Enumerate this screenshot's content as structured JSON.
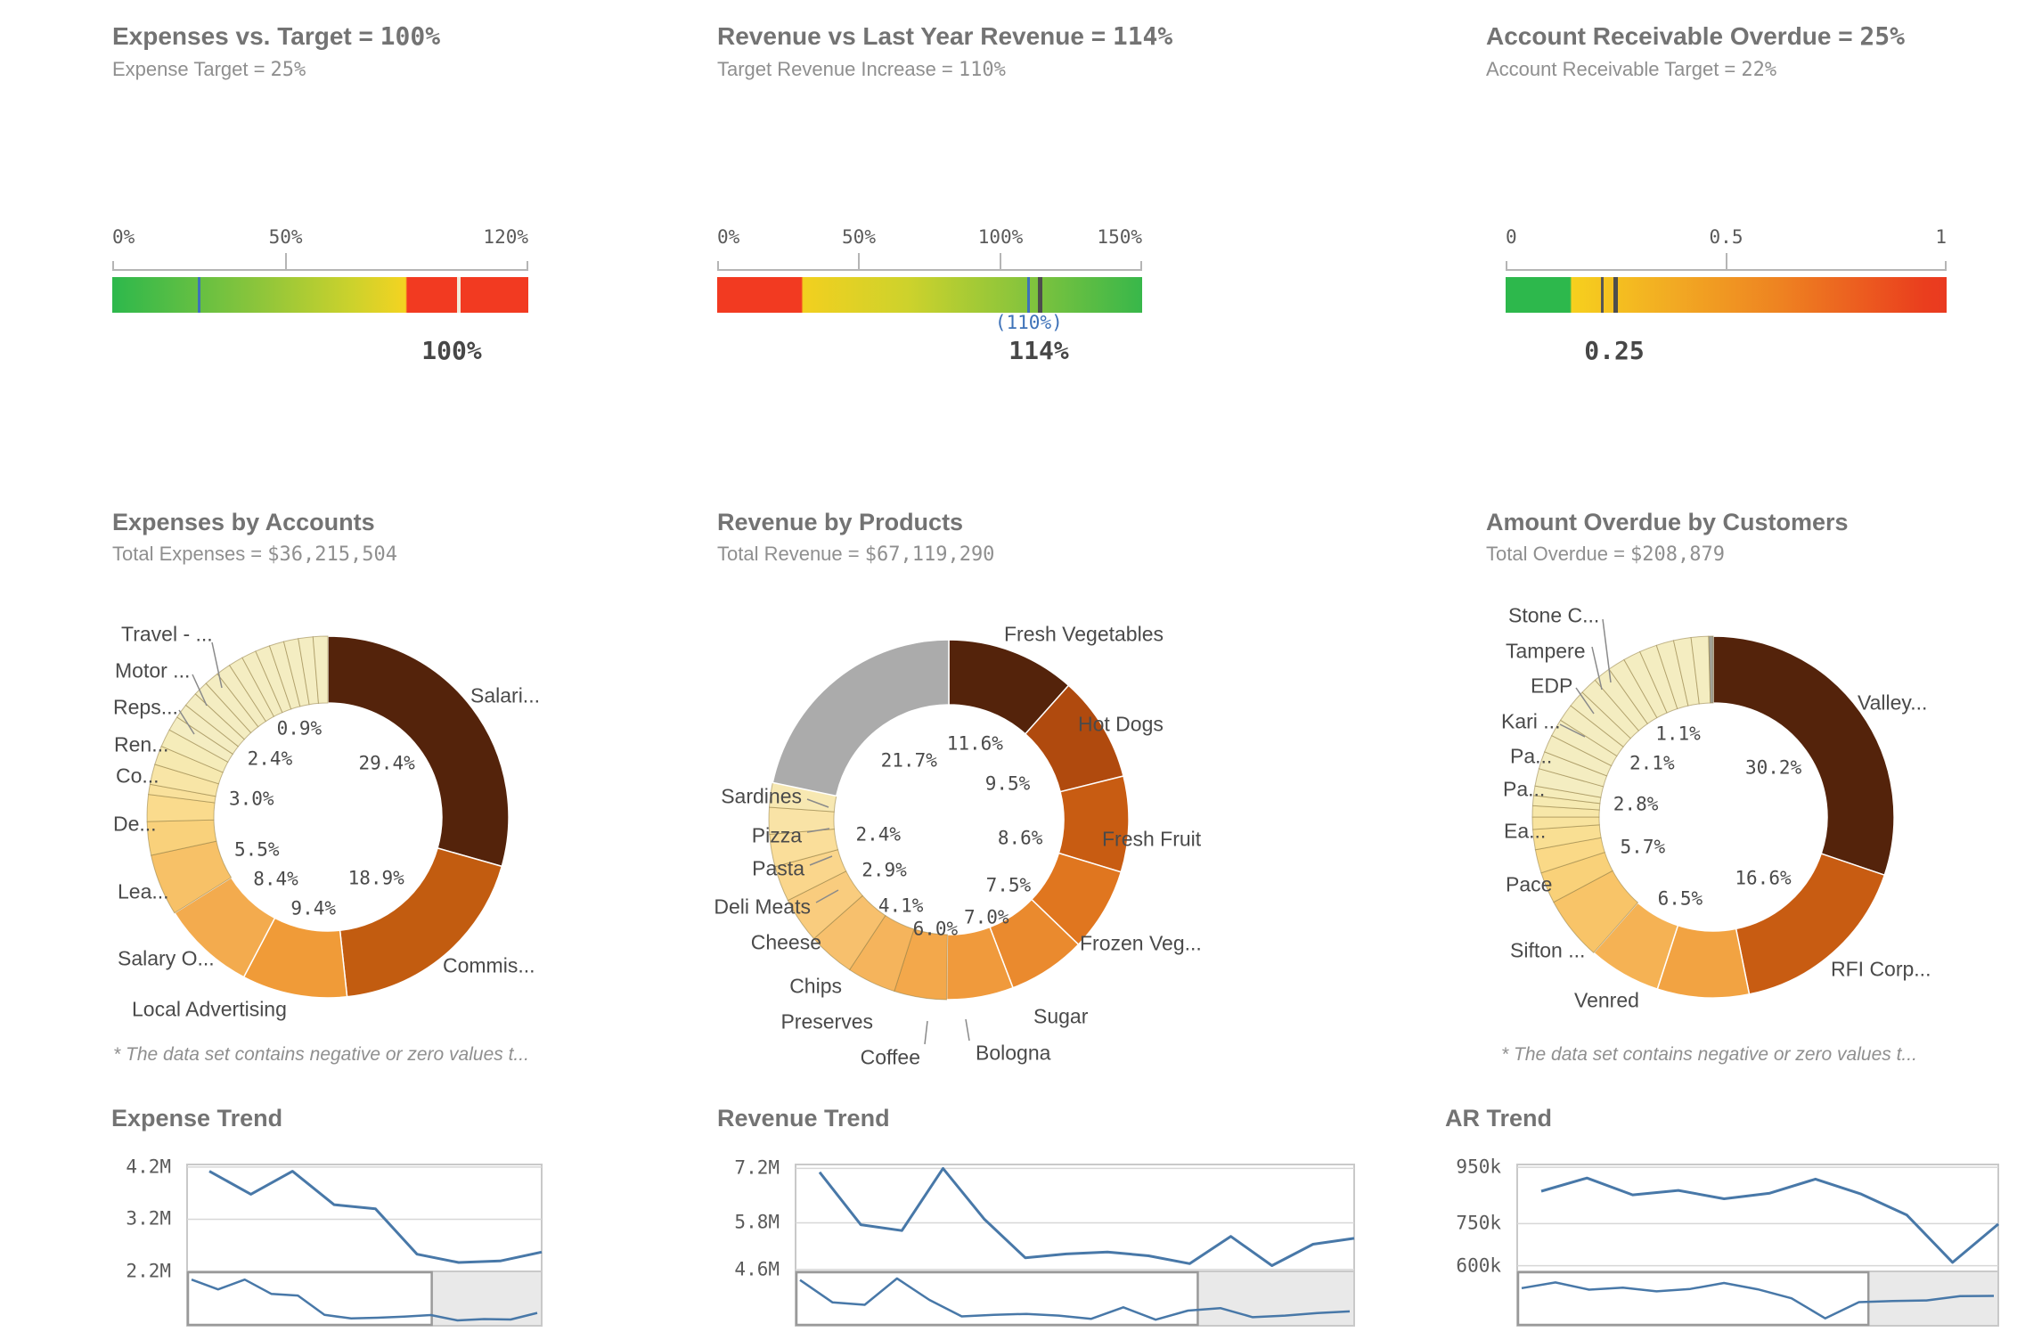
{
  "chart_data": [
    {
      "type": "bullet",
      "title": "Expenses vs. Target = ",
      "title_value": "100%",
      "subtitle": "Expense Target = ",
      "subtitle_value": "25%",
      "min": 0,
      "max": 120,
      "ticks": [
        {
          "label": "0%",
          "v": 0
        },
        {
          "label": "50%",
          "v": 50
        },
        {
          "label": "120%",
          "v": 120
        }
      ],
      "value": 100,
      "value_label": "100%",
      "target": 25,
      "annotation": null,
      "annotation_v": null,
      "bar_gradient": [
        [
          "#2db84c",
          0
        ],
        [
          "#8cc53b",
          35
        ],
        [
          "#cdd22c",
          58
        ],
        [
          "#f4d321",
          70.5
        ],
        [
          "#f23a21",
          70.9
        ],
        [
          "#f23a21",
          100
        ]
      ],
      "markers": [
        {
          "v": 25,
          "color": "#3e72b8",
          "w": 3
        },
        {
          "v": 100,
          "color": "#f2ead9",
          "w": 4
        }
      ]
    },
    {
      "type": "bullet",
      "title": "Revenue vs Last Year Revenue = ",
      "title_value": "114%",
      "subtitle": "Target Revenue Increase = ",
      "subtitle_value": "110%",
      "min": 0,
      "max": 150,
      "ticks": [
        {
          "label": "0%",
          "v": 0
        },
        {
          "label": "50%",
          "v": 50
        },
        {
          "label": "100%",
          "v": 100
        },
        {
          "label": "150%",
          "v": 150
        }
      ],
      "value": 114,
      "value_label": "114%",
      "target": 110,
      "annotation": "(110%)",
      "annotation_v": 110,
      "bar_gradient": [
        [
          "#f23a21",
          0
        ],
        [
          "#f23a21",
          19.8
        ],
        [
          "#f2d01f",
          20.2
        ],
        [
          "#cdd22c",
          45
        ],
        [
          "#8cc53b",
          70
        ],
        [
          "#38b74a",
          100
        ]
      ],
      "markers": [
        {
          "v": 110,
          "color": "#3e72b8",
          "w": 3
        },
        {
          "v": 114,
          "color": "#4d4d4d",
          "w": 5
        }
      ]
    },
    {
      "type": "bullet",
      "title": "Account Receivable Overdue = ",
      "title_value": "25%",
      "subtitle": "Account Receivable Target = ",
      "subtitle_value": "22%",
      "min": 0,
      "max": 1,
      "ticks": [
        {
          "label": "0",
          "v": 0
        },
        {
          "label": "0.5",
          "v": 0.5
        },
        {
          "label": "1",
          "v": 1
        }
      ],
      "value": 0.25,
      "value_label": "0.25",
      "target": 0.22,
      "annotation": null,
      "annotation_v": null,
      "bar_gradient": [
        [
          "#2db84c",
          0
        ],
        [
          "#2db84c",
          14.6
        ],
        [
          "#f6d01e",
          15.0
        ],
        [
          "#f2aa23",
          38
        ],
        [
          "#ee8321",
          62
        ],
        [
          "#ea3e1e",
          95
        ],
        [
          "#e93a20",
          100
        ]
      ],
      "markers": [
        {
          "v": 0.22,
          "color": "#565656",
          "w": 3
        },
        {
          "v": 0.25,
          "color": "#4d4d4d",
          "w": 5
        }
      ]
    },
    {
      "type": "donut",
      "title": "Expenses by Accounts",
      "subtitle": "Total Expenses = ",
      "subtitle_value": "$36,215,504",
      "footnote": "* The data set contains negative or zero values t...",
      "segments": [
        {
          "label": "Salari...",
          "pct": 29.4,
          "pct_label": "29.4%",
          "color": "#54230b"
        },
        {
          "label": "Commis...",
          "pct": 18.9,
          "pct_label": "18.9%",
          "color": "#c25c10"
        },
        {
          "label": "Local Advertising",
          "pct": 9.4,
          "pct_label": "9.4%",
          "color": "#f09b38"
        },
        {
          "label": "Salary O...",
          "pct": 8.4,
          "pct_label": "8.4%",
          "color": "#f3ab4e"
        },
        {
          "label": "Lea...",
          "pct": 5.5,
          "pct_label": "5.5%",
          "color": "#f7c167"
        },
        {
          "label": "De...",
          "pct": 3.0,
          "pct_label": "3.0%",
          "color": "#f9d17b"
        },
        {
          "label": "Co...",
          "pct": 2.4,
          "pct_label": "2.4%",
          "color": "#fadb8d"
        },
        {
          "label": "Ren...",
          "pct": 0.9,
          "pct_label": "0.9%",
          "color": "#f9e19c"
        },
        {
          "label": "Reps...",
          "pct": 1.8,
          "pct_label": null,
          "color": "#f8e5a6"
        },
        {
          "label": "Motor ...",
          "pct": 1.7,
          "pct_label": null,
          "color": "#f6e9b0"
        },
        {
          "label": "Travel - ...",
          "pct": 1.6,
          "pct_label": null,
          "color": "#f5ecba"
        },
        {
          "label": "",
          "pct": 17.0,
          "pct_label": null,
          "color": "#f4edc2",
          "filler_count": 13
        }
      ]
    },
    {
      "type": "donut",
      "title": "Revenue by Products",
      "subtitle": "Total Revenue = ",
      "subtitle_value": "$67,119,290",
      "footnote": null,
      "segments": [
        {
          "label": "Fresh Vegetables",
          "pct": 11.6,
          "pct_label": "11.6%",
          "color": "#54230b"
        },
        {
          "label": "Hot Dogs",
          "pct": 9.5,
          "pct_label": "9.5%",
          "color": "#b04a0e"
        },
        {
          "label": "Fresh Fruit",
          "pct": 8.6,
          "pct_label": "8.6%",
          "color": "#c85c12"
        },
        {
          "label": "Frozen Veg...",
          "pct": 7.5,
          "pct_label": "7.5%",
          "color": "#e0761f"
        },
        {
          "label": "Sugar",
          "pct": 7.0,
          "pct_label": "7.0%",
          "color": "#ea8a2e"
        },
        {
          "label": "Bologna",
          "pct": 6.0,
          "pct_label": "6.0%",
          "color": "#f09a3c"
        },
        {
          "label": "Coffee",
          "pct": 4.7,
          "pct_label": null,
          "color": "#f3a84b"
        },
        {
          "label": "Preserves",
          "pct": 4.4,
          "pct_label": null,
          "color": "#f5b45c"
        },
        {
          "label": "Chips",
          "pct": 4.2,
          "pct_label": null,
          "color": "#f7c06d"
        },
        {
          "label": "Cheese",
          "pct": 4.1,
          "pct_label": "4.1%",
          "color": "#f9cc7e"
        },
        {
          "label": "Deli Meats",
          "pct": 3.2,
          "pct_label": null,
          "color": "#fad68c"
        },
        {
          "label": "Pasta",
          "pct": 2.9,
          "pct_label": "2.9%",
          "color": "#fade9a"
        },
        {
          "label": "Pizza",
          "pct": 2.4,
          "pct_label": "2.4%",
          "color": "#f9e3a6"
        },
        {
          "label": "Sardines",
          "pct": 2.2,
          "pct_label": null,
          "color": "#f7e8b2"
        },
        {
          "label": null,
          "pct": 21.7,
          "pct_label": "21.7%",
          "color": "#ababab"
        }
      ]
    },
    {
      "type": "donut",
      "title": "Amount Overdue by Customers",
      "subtitle": "Total Overdue = ",
      "subtitle_value": "$208,879",
      "footnote": "* The data set contains negative or zero values t...",
      "segments": [
        {
          "label": "Valley...",
          "pct": 30.2,
          "pct_label": "30.2%",
          "color": "#54230b"
        },
        {
          "label": "RFI Corp...",
          "pct": 16.6,
          "pct_label": "16.6%",
          "color": "#c85c12"
        },
        {
          "label": "Venred",
          "pct": 8.2,
          "pct_label": null,
          "color": "#f2a342"
        },
        {
          "label": "Sifton ...",
          "pct": 6.5,
          "pct_label": "6.5%",
          "color": "#f5b254"
        },
        {
          "label": "Pace",
          "pct": 5.7,
          "pct_label": "5.7%",
          "color": "#f8c468"
        },
        {
          "label": "Ea...",
          "pct": 2.8,
          "pct_label": "2.8%",
          "color": "#f9d179"
        },
        {
          "label": "Pa...",
          "pct": 2.1,
          "pct_label": "2.1%",
          "color": "#fad987"
        },
        {
          "label": "Pa...",
          "pct": 1.8,
          "pct_label": null,
          "color": "#f9df93"
        },
        {
          "label": "Kari ...",
          "pct": 1.1,
          "pct_label": "1.1%",
          "color": "#f8e39e"
        },
        {
          "label": "EDP",
          "pct": 1.0,
          "pct_label": null,
          "color": "#f7e7a9"
        },
        {
          "label": "Tampere",
          "pct": 0.9,
          "pct_label": null,
          "color": "#f6eab2"
        },
        {
          "label": "Stone C...",
          "pct": 0.85,
          "pct_label": null,
          "color": "#f5ecba"
        },
        {
          "label": "",
          "pct": 21.85,
          "pct_label": null,
          "color": "#f4edc1",
          "filler_count": 14
        },
        {
          "label": null,
          "pct": 0.4,
          "pct_label": null,
          "color": "#a0a096"
        }
      ]
    },
    {
      "type": "line",
      "title": "Expense Trend",
      "yticks": [
        {
          "label": "4.2M",
          "v": 4.2
        },
        {
          "label": "3.2M",
          "v": 3.2
        },
        {
          "label": "2.2M",
          "v": 2.2
        }
      ],
      "ymin": 2.2,
      "ymax": 4.25,
      "series": [
        4.12,
        3.68,
        4.12,
        3.48,
        3.4,
        2.53,
        2.37,
        2.4,
        2.57
      ],
      "nav_series": [
        4.12,
        3.68,
        4.12,
        3.48,
        3.4,
        2.53,
        2.37,
        2.4,
        2.45,
        2.52,
        2.28,
        2.34,
        2.32,
        2.62
      ],
      "nav_selected": 0.69,
      "line_color": "#4878a8"
    },
    {
      "type": "line",
      "title": "Revenue Trend",
      "yticks": [
        {
          "label": "7.2M",
          "v": 7.2
        },
        {
          "label": "5.8M",
          "v": 5.8
        },
        {
          "label": "4.6M",
          "v": 4.6
        }
      ],
      "ymin": 4.55,
      "ymax": 7.3,
      "series": [
        7.1,
        5.75,
        5.6,
        7.2,
        5.9,
        4.9,
        5.0,
        5.05,
        4.95,
        4.75,
        5.45,
        4.7,
        5.25,
        5.4
      ],
      "nav_series": [
        7.1,
        5.75,
        5.6,
        7.2,
        5.9,
        4.9,
        5.0,
        5.05,
        4.95,
        4.75,
        5.45,
        4.7,
        5.25,
        5.4,
        4.85,
        4.95,
        5.1,
        5.2
      ],
      "nav_selected": 0.72,
      "line_color": "#4878a8"
    },
    {
      "type": "line",
      "title": "AR Trend",
      "yticks": [
        {
          "label": "950k",
          "v": 950
        },
        {
          "label": "750k",
          "v": 750
        },
        {
          "label": "600k",
          "v": 600
        }
      ],
      "ymin": 580,
      "ymax": 960,
      "series": [
        865,
        912,
        852,
        868,
        838,
        858,
        908,
        855,
        780,
        612,
        748
      ],
      "nav_series": [
        865,
        912,
        852,
        868,
        838,
        858,
        908,
        855,
        780,
        612,
        748,
        757,
        762,
        798,
        800
      ],
      "nav_selected": 0.73,
      "line_color": "#4878a8"
    }
  ]
}
